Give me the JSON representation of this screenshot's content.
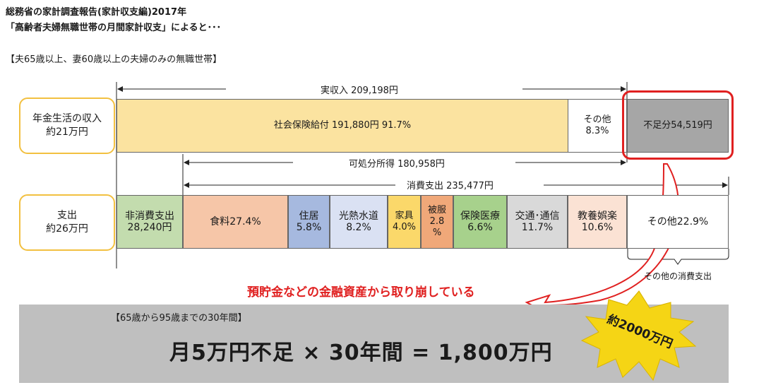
{
  "header": {
    "line1": "総務省の家計調査報告(家計収支編)2017年",
    "line2": "「高齢者夫婦無職世帯の月間家計収支」によると･･･",
    "line3": "【夫65歳以上、妻60歳以上の夫婦のみの無職世帯】"
  },
  "income_label": {
    "line1": "年金生活の収入",
    "line2": "約21万円"
  },
  "expense_label": {
    "line1": "支出",
    "line2": "約26万円"
  },
  "income_total": "実収入 209,198円",
  "income_bar": {
    "social": "社会保険給付 191,880円 91.7%",
    "other_line1": "その他",
    "other_line2": "8.3%",
    "shortfall": "不足分54,519円"
  },
  "disposable": "可処分所得 180,958円",
  "consumption": "消費支出 235,477円",
  "expense_bar": {
    "nonconsumption": {
      "line1": "非消費支出",
      "line2": "28,240円"
    },
    "food": "食料27.4%",
    "housing": {
      "line1": "住居",
      "line2": "5.8%"
    },
    "utilities": {
      "line1": "光熱水道",
      "line2": "8.2%"
    },
    "furniture": {
      "line1": "家具",
      "line2": "4.0%"
    },
    "clothing": {
      "line1": "被服",
      "line2": "2.8",
      "line3": "%"
    },
    "medical": {
      "line1": "保険医療",
      "line2": "6.6%"
    },
    "transport": {
      "line1": "交通･通信",
      "line2": "11.7%"
    },
    "education": {
      "line1": "教養娯楽",
      "line2": "10.6%"
    },
    "other": "その他22.9%"
  },
  "other_consumption_note": "その他の消費支出",
  "savings_note": "預貯金などの金融資産から取り崩している",
  "period_note": "【65歳から95歳までの30年間】",
  "equation": "月5万円不足 × 30年間 = 1,800万円",
  "burst": "約2000万円",
  "colors": {
    "social": "#fbe3a0",
    "shortfall": "#a6a6a6",
    "nonconsumption": "#c3dcae",
    "food": "#f6c6a8",
    "housing": "#a6b9df",
    "utilities": "#dae1f3",
    "furniture": "#fbd86a",
    "clothing": "#f0a879",
    "medical": "#a7d18c",
    "transport": "#d9d9d9",
    "education": "#fbe2d4",
    "highlight": "#e02020",
    "burst": "#f5d515",
    "pill_border": "#f2c040"
  }
}
